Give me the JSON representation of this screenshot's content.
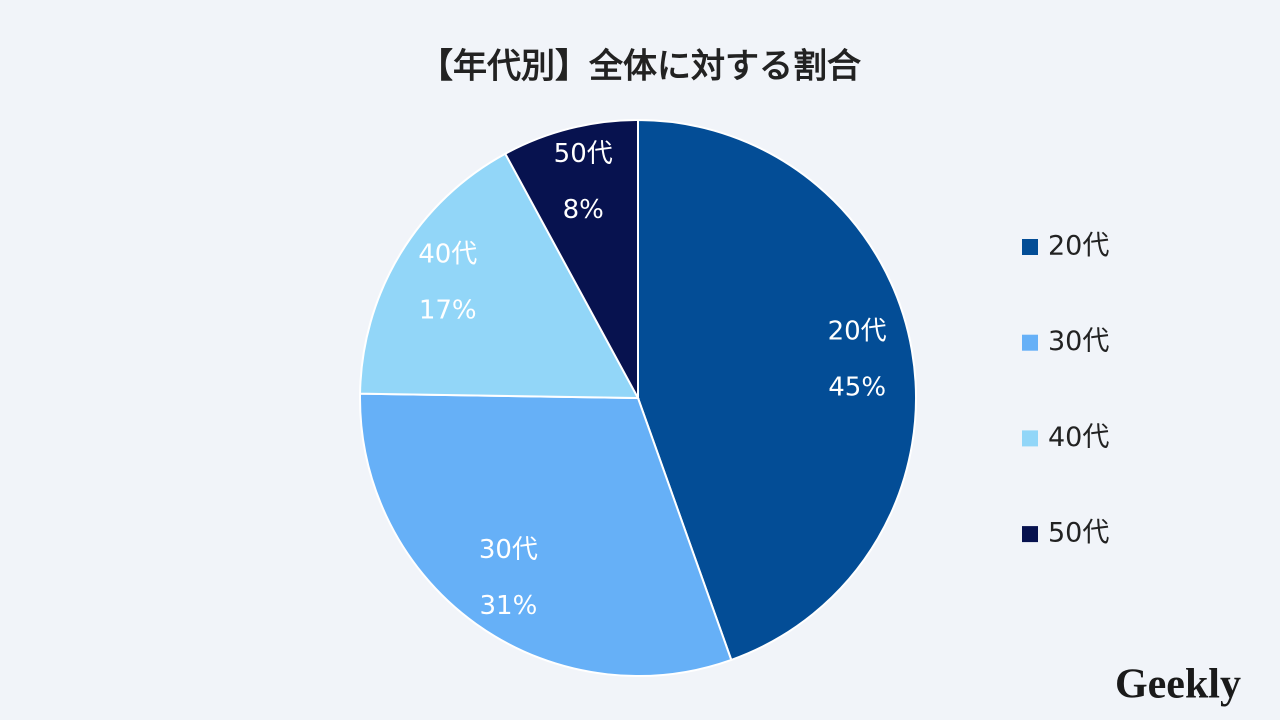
{
  "chart_data": {
    "type": "pie",
    "title": "【年代別】全体に対する割合",
    "categories": [
      "20代",
      "30代",
      "40代",
      "50代"
    ],
    "values": [
      45,
      31,
      17,
      8
    ],
    "value_labels": [
      "45%",
      "31%",
      "17%",
      "8%"
    ],
    "colors": [
      "#034d96",
      "#66b0f7",
      "#92d6f8",
      "#07124f"
    ],
    "legend": "right"
  },
  "logo": "Geekly"
}
